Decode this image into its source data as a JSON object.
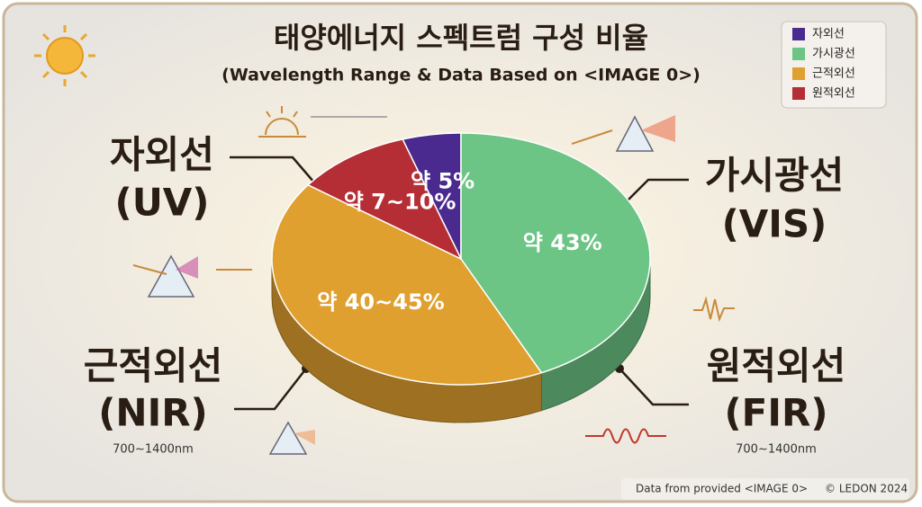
{
  "chart_data": {
    "type": "pie",
    "title": "태양에너지 스펙트럼 구성 비율",
    "subtitle": "(Wavelength Range & Data Based on <IMAGE 0>)",
    "categories": [
      "자외선",
      "가시광선",
      "근적외선",
      "원적외선"
    ],
    "abbreviations": [
      "(UV)",
      "(VIS)",
      "(NIR)",
      "(FIR)"
    ],
    "band_notes": [
      null,
      null,
      "700~1400nm",
      "700~1400nm"
    ],
    "values": [
      5,
      43,
      42,
      10
    ],
    "value_labels": [
      "약 5%",
      "약 43%",
      "약 40~45%",
      "약 7~10%"
    ],
    "colors": [
      "#4b2a8f",
      "#6cc485",
      "#e0a030",
      "#b52d35"
    ],
    "legend": "top-right"
  },
  "footer": {
    "source": "Data from provided <IMAGE 0>",
    "credit": "© LEDON 2024"
  }
}
